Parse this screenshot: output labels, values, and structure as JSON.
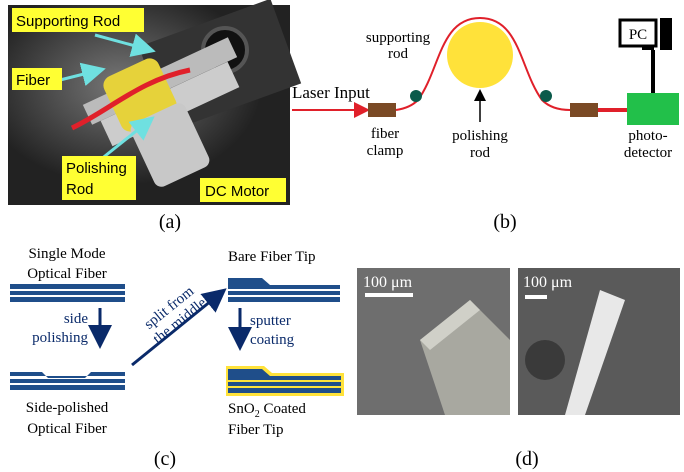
{
  "panel_a": {
    "supporting_rod": "Supporting Rod",
    "fiber": "Fiber",
    "polishing_rod": [
      "Polishing",
      "Rod"
    ],
    "dc_motor": "DC Motor",
    "caption": "(a)"
  },
  "panel_b": {
    "laser_input": "Laser Input",
    "supporting_rod": [
      "supporting",
      "rod"
    ],
    "fiber_clamp": [
      "fiber",
      "clamp"
    ],
    "polishing_rod": [
      "polishing",
      "rod"
    ],
    "photodetector": [
      "photo-",
      "detector"
    ],
    "pc": "PC",
    "caption": "(b)"
  },
  "panel_c": {
    "single_mode": [
      "Single Mode",
      "Optical Fiber"
    ],
    "side_polishing": [
      "side",
      "polishing"
    ],
    "side_polished": [
      "Side-polished",
      "Optical Fiber"
    ],
    "split": [
      "split from",
      "the middle"
    ],
    "bare_tip": "Bare Fiber Tip",
    "sputter": [
      "sputter",
      "coating"
    ],
    "coated": {
      "chem": "SnO",
      "sub": "2",
      "rest": " Coated",
      "line2": "Fiber Tip"
    },
    "caption": "(c)"
  },
  "panel_d": {
    "scale_left": "100 μm",
    "scale_right": "100 μm",
    "caption": "(d)"
  }
}
